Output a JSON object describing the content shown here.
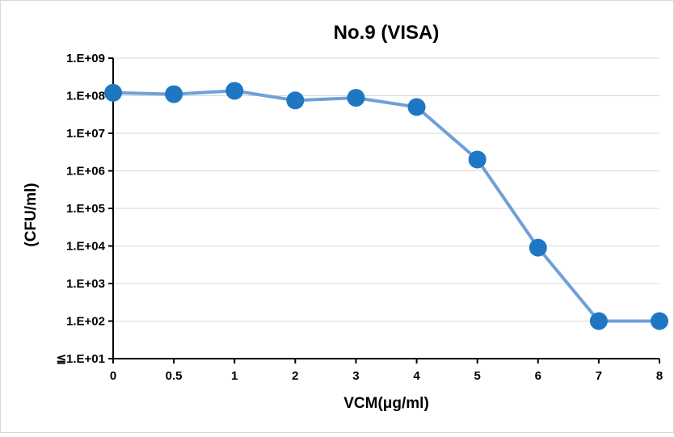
{
  "chart_data": {
    "type": "line",
    "title": "No.9 (VISA)",
    "xlabel": "VCM(μg/ml)",
    "ylabel": "(CFU/ml)",
    "y_scale": "log",
    "ylim": [
      10,
      1000000000
    ],
    "grid": true,
    "legend": "none",
    "categories": [
      "0",
      "0.5",
      "1",
      "2",
      "3",
      "4",
      "5",
      "6",
      "7",
      "8"
    ],
    "y_tick_labels": [
      "≦1.E+01",
      "1.E+02",
      "1.E+03",
      "1.E+04",
      "1.E+05",
      "1.E+06",
      "1.E+07",
      "1.E+08",
      "1.E+09"
    ],
    "series": [
      {
        "values": [
          120000000,
          110000000,
          135000000,
          75000000,
          88000000,
          50000000,
          2000000,
          9000,
          100,
          100
        ]
      }
    ]
  },
  "colors": {
    "line": "#6fa0d8",
    "marker": "#1f77c4",
    "grid": "#d9d9d9",
    "axis": "#000000",
    "border": "#d9d9d9"
  }
}
